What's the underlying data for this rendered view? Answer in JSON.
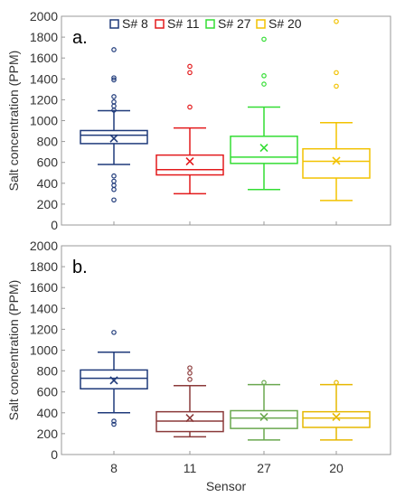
{
  "chart_data": [
    {
      "type": "box",
      "panel_label": "a.",
      "ylabel": "Salt concentration (PPM)",
      "xlabel": "",
      "ylim": [
        0,
        2000
      ],
      "yticks": [
        0,
        200,
        400,
        600,
        800,
        1000,
        1200,
        1400,
        1600,
        1800,
        2000
      ],
      "categories": [
        "8",
        "11",
        "27",
        "20"
      ],
      "legend": {
        "position": "top",
        "entries": [
          "S# 8",
          "S# 11",
          "S# 27",
          "S# 20"
        ]
      },
      "series": [
        {
          "category": "8",
          "color": "#1f3a7a",
          "whisker_low": 580,
          "q1": 780,
          "median": 860,
          "q3": 905,
          "whisker_high": 1095,
          "mean": 830,
          "outliers": [
            240,
            340,
            380,
            420,
            470,
            1100,
            1140,
            1180,
            1230,
            1390,
            1410,
            1680
          ]
        },
        {
          "category": "11",
          "color": "#e31a1c",
          "whisker_low": 300,
          "q1": 480,
          "median": 530,
          "q3": 670,
          "whisker_high": 930,
          "mean": 610,
          "outliers": [
            1130,
            1460,
            1520
          ]
        },
        {
          "category": "27",
          "color": "#33dd33",
          "whisker_low": 340,
          "q1": 590,
          "median": 650,
          "q3": 850,
          "whisker_high": 1130,
          "mean": 740,
          "outliers": [
            1350,
            1430,
            1780
          ]
        },
        {
          "category": "20",
          "color": "#f2c200",
          "whisker_low": 235,
          "q1": 450,
          "median": 610,
          "q3": 730,
          "whisker_high": 980,
          "mean": 615,
          "outliers": [
            1330,
            1460,
            1950
          ]
        }
      ]
    },
    {
      "type": "box",
      "panel_label": "b.",
      "ylabel": "Salt concentration (PPM)",
      "xlabel": "Sensor",
      "ylim": [
        0,
        2000
      ],
      "yticks": [
        0,
        200,
        400,
        600,
        800,
        1000,
        1200,
        1400,
        1600,
        1800,
        2000
      ],
      "categories": [
        "8",
        "11",
        "27",
        "20"
      ],
      "series": [
        {
          "category": "8",
          "color": "#1f3a7a",
          "whisker_low": 400,
          "q1": 630,
          "median": 730,
          "q3": 810,
          "whisker_high": 980,
          "mean": 710,
          "outliers": [
            290,
            320,
            1170
          ]
        },
        {
          "category": "11",
          "color": "#8b3a3a",
          "whisker_low": 170,
          "q1": 220,
          "median": 320,
          "q3": 410,
          "whisker_high": 660,
          "mean": 350,
          "outliers": [
            720,
            780,
            830
          ]
        },
        {
          "category": "27",
          "color": "#6aa84f",
          "whisker_low": 140,
          "q1": 250,
          "median": 350,
          "q3": 420,
          "whisker_high": 670,
          "mean": 360,
          "outliers": [
            690
          ]
        },
        {
          "category": "20",
          "color": "#e6b800",
          "whisker_low": 140,
          "q1": 260,
          "median": 350,
          "q3": 410,
          "whisker_high": 670,
          "mean": 360,
          "outliers": [
            690
          ]
        }
      ]
    }
  ]
}
